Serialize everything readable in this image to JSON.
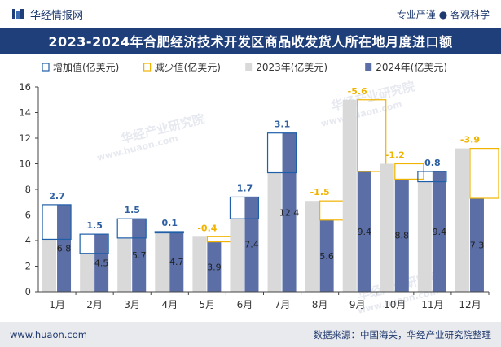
{
  "header": {
    "brand": "华经情报网",
    "tagline": "专业严谨 ● 客观科学"
  },
  "title": "2023-2024年合肥经济技术开发区商品收发货人所在地月度进口额",
  "watermarks": [
    "华经产业研究院",
    "www.huaon.com"
  ],
  "footer": {
    "url": "www.huaon.com",
    "source": "数据来源：中国海关，华经产业研究院整理"
  },
  "chart_data": {
    "type": "bar",
    "categories": [
      "1月",
      "2月",
      "3月",
      "4月",
      "5月",
      "6月",
      "7月",
      "8月",
      "9月",
      "10月",
      "11月",
      "12月"
    ],
    "series": [
      {
        "name": "2023年(亿美元)",
        "values": [
          4.1,
          3.0,
          4.2,
          4.6,
          4.3,
          5.7,
          9.3,
          7.1,
          15.0,
          10.0,
          8.6,
          11.2
        ],
        "color": "#d9d9d9"
      },
      {
        "name": "2024年(亿美元)",
        "values": [
          6.8,
          4.5,
          5.7,
          4.7,
          3.9,
          7.4,
          12.4,
          5.6,
          9.4,
          8.8,
          9.4,
          7.3
        ],
        "color": "#5b6fa6"
      }
    ],
    "changes": [
      2.7,
      1.5,
      1.5,
      0.1,
      -0.4,
      1.7,
      3.1,
      -1.5,
      -5.6,
      -1.2,
      0.8,
      -3.9
    ],
    "change_labels": [
      "2.7",
      "1.5",
      "1.5",
      "0.1",
      "-0.4",
      "1.7",
      "3.1",
      "-1.5",
      "-5.6",
      "-1.2",
      "0.8",
      "-3.9"
    ],
    "legend": [
      {
        "label": "增加值(亿美元)",
        "kind": "increase",
        "color": "#1f5fa8"
      },
      {
        "label": "减少值(亿美元)",
        "kind": "decrease",
        "color": "#f0b400"
      },
      {
        "label": "2023年(亿美元)",
        "kind": "bar2023",
        "color": "#d9d9d9"
      },
      {
        "label": "2024年(亿美元)",
        "kind": "bar2024",
        "color": "#5b6fa6"
      }
    ],
    "legend_position": "top",
    "ylim": [
      0,
      16
    ],
    "yticks": [
      0,
      2,
      4,
      6,
      8,
      10,
      12,
      14,
      16
    ],
    "grid": false,
    "increase_label_color": "#2e5fa0",
    "decrease_label_color": "#f0b400",
    "value_label_color": "#222222"
  }
}
